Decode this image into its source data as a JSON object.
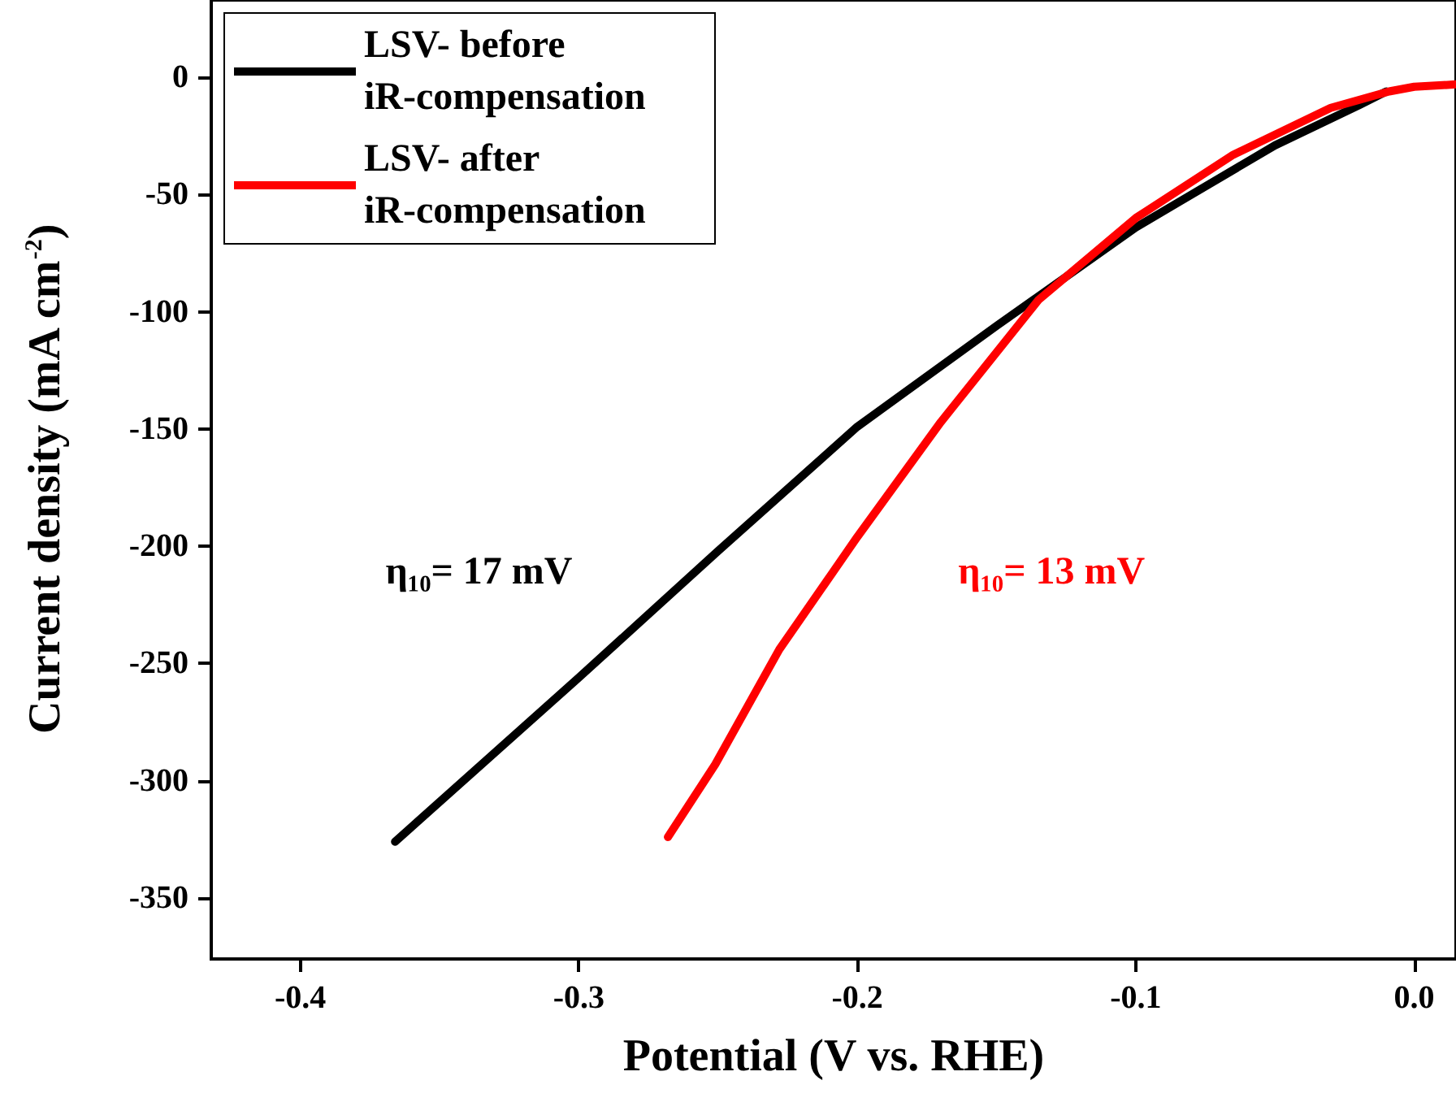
{
  "chart_data": {
    "type": "line",
    "xlabel": "Potential (V vs. RHE)",
    "ylabel": "Current density (mA cm$^{-2}$)",
    "xlim": [
      -0.432,
      0.015
    ],
    "xticks": [
      {
        "value": -0.4,
        "label": "-0.4"
      },
      {
        "value": -0.3,
        "label": "-0.3"
      },
      {
        "value": -0.2,
        "label": "-0.2"
      },
      {
        "value": -0.1,
        "label": "-0.1"
      },
      {
        "value": 0,
        "label": "0.0"
      }
    ],
    "ylim": [
      -376,
      33
    ],
    "yticks": [
      0,
      -50,
      -100,
      -150,
      -200,
      -250,
      -300,
      -350
    ],
    "grid": false,
    "legend": "top left",
    "marker": "none",
    "line_style": "solid",
    "annotations": [
      "η₁₀= 17 mV",
      "η₁₀= 13 mV"
    ],
    "series": [
      {
        "name": "LSV- before iR-compensation",
        "color": "#000000",
        "x": [
          -0.366,
          -0.333,
          -0.3,
          -0.25,
          -0.2,
          -0.15,
          -0.1,
          -0.05,
          -0.02,
          -0.01
        ],
        "values": [
          -326,
          -291,
          -256,
          -202,
          -149,
          -106,
          -64,
          -29,
          -12,
          -6
        ]
      },
      {
        "name": "LSV- after iR-compensation",
        "color": "#ff0000",
        "x": [
          -0.268,
          -0.251,
          -0.228,
          -0.2,
          -0.17,
          -0.135,
          -0.1,
          -0.065,
          -0.03,
          -0.009,
          0.0,
          0.015
        ],
        "values": [
          -324,
          -293,
          -244,
          -196,
          -147,
          -95,
          -60,
          -33,
          -13,
          -6,
          -4,
          -3
        ]
      }
    ]
  }
}
